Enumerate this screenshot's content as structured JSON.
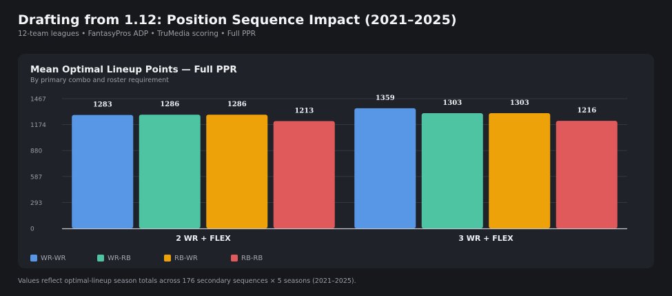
{
  "header": {
    "title": "Drafting from 1.12: Position Sequence Impact (2021–2025)",
    "subtitle": "12-team leagues  •  FantasyPros ADP  •  TruMedia scoring  •  Full PPR"
  },
  "card": {
    "title": "Mean Optimal Lineup Points — Full PPR",
    "subtitle": "By primary combo and roster requirement"
  },
  "chart_data": {
    "type": "bar",
    "title": "Mean Optimal Lineup Points — Full PPR",
    "subtitle": "By primary combo and roster requirement",
    "categories": [
      "2 WR + FLEX",
      "3 WR + FLEX"
    ],
    "series": [
      {
        "name": "WR-WR",
        "color": "#5896e6",
        "values": [
          1283,
          1359
        ]
      },
      {
        "name": "WR-RB",
        "color": "#4fc4a3",
        "values": [
          1286,
          1303
        ]
      },
      {
        "name": "RB-WR",
        "color": "#eda20a",
        "values": [
          1286,
          1303
        ]
      },
      {
        "name": "RB-RB",
        "color": "#e05a5c",
        "values": [
          1213,
          1216
        ]
      }
    ],
    "yticks": [
      0,
      293,
      587,
      880,
      1174,
      1467
    ],
    "ylim": [
      0,
      1467
    ],
    "grid": true,
    "legend": "bottom-left",
    "xlabel": "",
    "ylabel": ""
  },
  "footnote": "Values reflect optimal-lineup season totals across 176 secondary sequences × 5 seasons (2021–2025)."
}
